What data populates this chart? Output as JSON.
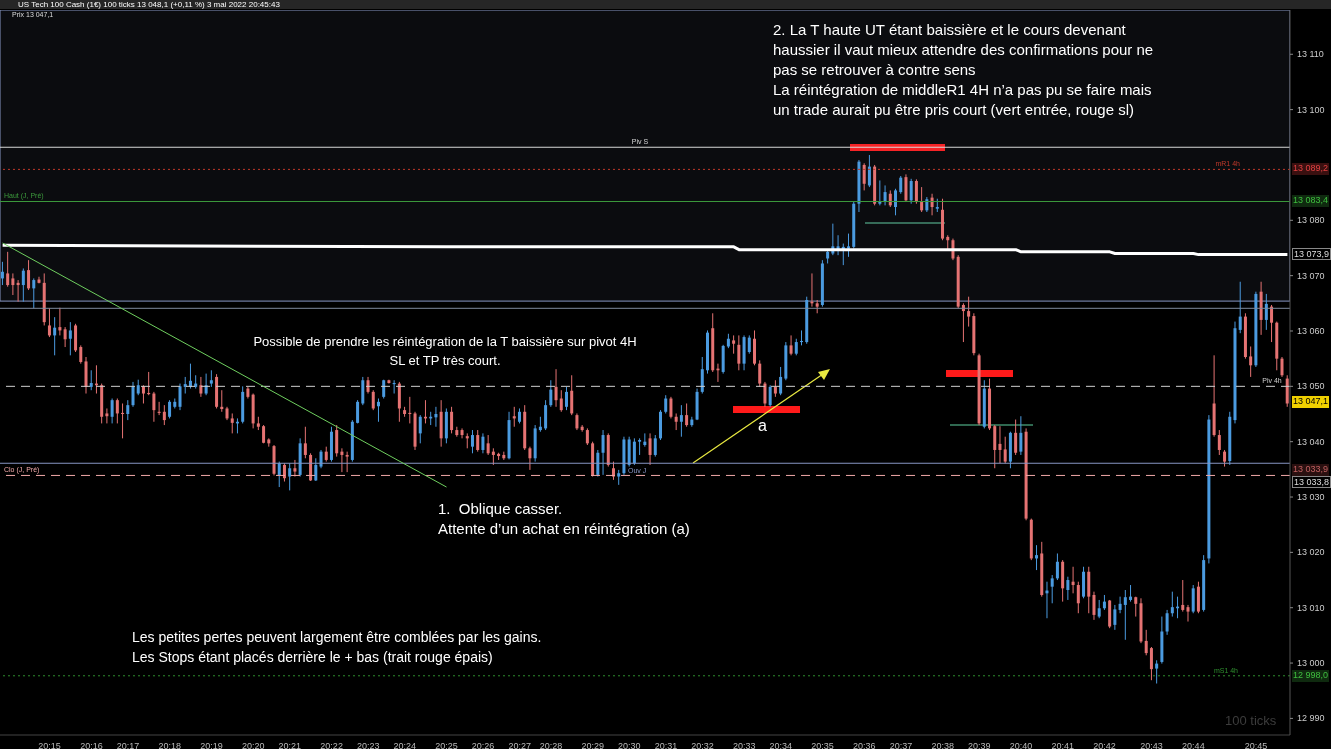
{
  "chart_data": {
    "type": "candlestick",
    "title": "US Tech 100 Cash (1€) 100 ticks 13 048,1 (+0,11 %) 3 mai 2022 20:45:43",
    "subtitle": "Prix 13 047,1",
    "categories": [
      null,
      null,
      null,
      null,
      null,
      null,
      null,
      null,
      null,
      "20:15",
      null,
      null,
      null,
      null,
      null,
      null,
      null,
      "20:16",
      null,
      null,
      null,
      null,
      null,
      null,
      "20:17",
      null,
      null,
      null,
      null,
      null,
      null,
      null,
      "20:18",
      null,
      null,
      null,
      null,
      null,
      null,
      null,
      "20:19",
      null,
      null,
      null,
      null,
      null,
      null,
      null,
      "20:20",
      null,
      null,
      null,
      null,
      null,
      null,
      "20:21",
      null,
      null,
      null,
      null,
      null,
      null,
      null,
      "20:22",
      null,
      null,
      null,
      null,
      null,
      null,
      "20:23",
      null,
      null,
      null,
      null,
      null,
      null,
      "20:24",
      null,
      null,
      null,
      null,
      null,
      null,
      null,
      "20:25",
      null,
      null,
      null,
      null,
      null,
      null,
      "20:26",
      null,
      null,
      null,
      null,
      null,
      null,
      "20:27",
      null,
      null,
      null,
      null,
      null,
      "20:28",
      null,
      null,
      null,
      null,
      null,
      null,
      null,
      "20:29",
      null,
      null,
      null,
      null,
      null,
      null,
      "20:30",
      null,
      null,
      null,
      null,
      null,
      null,
      "20:31",
      null,
      null,
      null,
      null,
      null,
      null,
      "20:32",
      null,
      null,
      null,
      null,
      null,
      null,
      null,
      "20:33",
      null,
      null,
      null,
      null,
      null,
      null,
      "20:34",
      null,
      null,
      null,
      null,
      null,
      null,
      null,
      "20:35",
      null,
      null,
      null,
      null,
      null,
      null,
      null,
      "20:36",
      null,
      null,
      null,
      null,
      null,
      null,
      "20:37",
      null,
      null,
      null,
      null,
      null,
      null,
      null,
      "20:38",
      null,
      null,
      null,
      null,
      null,
      null,
      "20:39",
      null,
      null,
      null,
      null,
      null,
      null,
      null,
      "20:40",
      null,
      null,
      null,
      null,
      null,
      null,
      null,
      "20:41",
      null,
      null,
      null,
      null,
      null,
      null,
      null,
      "20:42",
      null,
      null,
      null,
      null,
      null,
      null,
      null,
      null,
      "20:43",
      null,
      null,
      null,
      null,
      null,
      null,
      null,
      "20:44",
      null,
      null,
      null,
      null,
      null,
      null,
      null,
      null,
      null,
      null,
      null,
      "20:45",
      null,
      null,
      null,
      null,
      null,
      null
    ],
    "ohlc": [
      [
        13069.5,
        13072.5,
        13068.3,
        13070.7
      ],
      [
        13070.4,
        13074.3,
        13068.0,
        13068.3
      ],
      [
        13069.5,
        13070.4,
        13066.5,
        13068.3
      ],
      [
        13068.7,
        13069.2,
        13065.3,
        13068.3
      ],
      [
        13068.3,
        13071.3,
        13065.3,
        13070.9
      ],
      [
        13071.0,
        13072.8,
        13067.4,
        13067.7
      ],
      [
        13067.7,
        13069.5,
        13064.1,
        13069.2
      ],
      [
        13069.3,
        13069.8,
        13068.6,
        13068.7
      ],
      [
        13068.7,
        13070.4,
        13061.0,
        13061.6
      ],
      [
        13061.0,
        13064.1,
        13058.9,
        13059.2
      ],
      [
        13059.2,
        13062.5,
        13055.6,
        13060.6
      ],
      [
        13060.7,
        13064.2,
        13059.2,
        13060.1
      ],
      [
        13060.3,
        13060.7,
        13057.1,
        13058.5
      ],
      [
        13058.6,
        13061.6,
        13055.6,
        13060.1
      ],
      [
        13061.0,
        13061.3,
        13056.2,
        13056.5
      ],
      [
        13057.1,
        13057.4,
        13054.1,
        13054.4
      ],
      [
        13054.5,
        13055.3,
        13048.7,
        13049.9
      ],
      [
        13049.9,
        13052.9,
        13049.3,
        13050.6
      ],
      [
        13050.5,
        13053.8,
        13048.7,
        13050.2
      ],
      [
        13050.2,
        13050.5,
        13043.3,
        13044.5
      ],
      [
        13045.1,
        13046.0,
        13043.3,
        13044.6
      ],
      [
        13044.5,
        13047.8,
        13043.3,
        13047.5
      ],
      [
        13047.5,
        13047.8,
        13043.3,
        13045.1
      ],
      [
        13045.2,
        13046.9,
        13040.6,
        13045.0
      ],
      [
        13045.0,
        13047.5,
        13043.9,
        13046.6
      ],
      [
        13046.6,
        13050.8,
        13046.3,
        13050.0
      ],
      [
        13048.7,
        13051.2,
        13048.4,
        13050.2
      ],
      [
        13050.0,
        13050.2,
        13046.9,
        13048.7
      ],
      [
        13048.8,
        13052.6,
        13048.4,
        13048.6
      ],
      [
        13048.7,
        13049.0,
        13043.6,
        13045.7
      ],
      [
        13045.4,
        13047.2,
        13044.8,
        13045.2
      ],
      [
        13045.4,
        13046.6,
        13043.0,
        13043.9
      ],
      [
        13044.5,
        13047.5,
        13044.2,
        13047.2
      ],
      [
        13046.3,
        13047.8,
        13046.0,
        13047.2
      ],
      [
        13046.3,
        13050.5,
        13045.7,
        13050.0
      ],
      [
        13049.9,
        13051.7,
        13048.7,
        13050.4
      ],
      [
        13049.9,
        13054.1,
        13049.6,
        13051.0
      ],
      [
        13049.9,
        13052.0,
        13049.6,
        13050.5
      ],
      [
        13050.2,
        13051.7,
        13048.1,
        13048.7
      ],
      [
        13048.7,
        13052.3,
        13048.4,
        13050.2
      ],
      [
        13050.5,
        13052.9,
        13049.9,
        13051.1
      ],
      [
        13051.7,
        13052.2,
        13046.0,
        13046.3
      ],
      [
        13046.3,
        13049.3,
        13045.4,
        13045.9
      ],
      [
        13046.0,
        13046.3,
        13043.9,
        13044.2
      ],
      [
        13044.2,
        13045.1,
        13041.5,
        13043.4
      ],
      [
        13043.3,
        13044.2,
        13041.5,
        13043.6
      ],
      [
        13043.6,
        13050.0,
        13043.3,
        13049.0
      ],
      [
        13049.6,
        13049.9,
        13047.8,
        13048.1
      ],
      [
        13048.5,
        13048.7,
        13042.4,
        13043.3
      ],
      [
        13043.3,
        13044.5,
        13042.1,
        13042.7
      ],
      [
        13042.8,
        13043.0,
        13039.7,
        13039.8
      ],
      [
        13040.4,
        13040.6,
        13039.1,
        13039.7
      ],
      [
        13039.2,
        13039.4,
        13033.9,
        13034.2
      ],
      [
        13033.9,
        13036.4,
        13031.8,
        13036.1
      ],
      [
        13035.8,
        13036.1,
        13032.8,
        13033.4
      ],
      [
        13033.7,
        13036.1,
        13031.2,
        13035.2
      ],
      [
        13035.2,
        13036.7,
        13033.7,
        13034.6
      ],
      [
        13034.0,
        13040.6,
        13033.7,
        13039.7
      ],
      [
        13039.7,
        13042.7,
        13037.0,
        13037.6
      ],
      [
        13037.6,
        13037.9,
        13032.9,
        13033.0
      ],
      [
        13033.0,
        13037.0,
        13032.9,
        13035.8
      ],
      [
        13035.5,
        13038.5,
        13035.2,
        13038.2
      ],
      [
        13038.2,
        13039.1,
        13036.4,
        13036.7
      ],
      [
        13036.7,
        13042.7,
        13036.4,
        13041.8
      ],
      [
        13042.1,
        13043.0,
        13037.3,
        13037.9
      ],
      [
        13038.2,
        13038.8,
        13034.5,
        13037.6
      ],
      [
        13037.6,
        13038.2,
        13034.5,
        13037.3
      ],
      [
        13036.7,
        13043.9,
        13036.4,
        13043.6
      ],
      [
        13043.4,
        13047.5,
        13043.3,
        13047.2
      ],
      [
        13046.9,
        13051.7,
        13046.6,
        13051.1
      ],
      [
        13051.1,
        13051.7,
        13048.7,
        13049.0
      ],
      [
        13049.0,
        13049.3,
        13045.7,
        13046.0
      ],
      [
        13046.4,
        13047.8,
        13043.6,
        13047.2
      ],
      [
        13048.1,
        13051.2,
        13047.8,
        13051.1
      ],
      [
        13051.1,
        13051.2,
        13050.5,
        13050.6
      ],
      [
        13050.4,
        13051.1,
        13048.7,
        13050.6
      ],
      [
        13050.5,
        13050.8,
        13043.6,
        13046.0
      ],
      [
        13045.7,
        13046.3,
        13044.5,
        13045.0
      ],
      [
        13045.2,
        13048.1,
        13043.3,
        13045.0
      ],
      [
        13045.1,
        13045.4,
        13038.5,
        13039.1
      ],
      [
        13041.5,
        13044.8,
        13039.7,
        13044.5
      ],
      [
        13044.5,
        13047.5,
        13043.3,
        13044.2
      ],
      [
        13044.2,
        13045.4,
        13043.0,
        13044.5
      ],
      [
        13044.4,
        13046.3,
        13042.7,
        13045.0
      ],
      [
        13045.4,
        13047.5,
        13039.1,
        13040.6
      ],
      [
        13040.6,
        13046.0,
        13039.7,
        13045.4
      ],
      [
        13045.4,
        13046.3,
        13041.5,
        13042.1
      ],
      [
        13042.1,
        13042.7,
        13040.9,
        13041.2
      ],
      [
        13042.1,
        13042.4,
        13040.6,
        13041.2
      ],
      [
        13041.0,
        13041.5,
        13038.8,
        13040.6
      ],
      [
        13039.1,
        13042.1,
        13037.9,
        13041.2
      ],
      [
        13041.2,
        13042.1,
        13038.2,
        13038.5
      ],
      [
        13038.5,
        13041.5,
        13037.9,
        13040.9
      ],
      [
        13039.7,
        13041.2,
        13037.6,
        13037.9
      ],
      [
        13038.2,
        13038.8,
        13035.8,
        13037.6
      ],
      [
        13037.8,
        13038.0,
        13036.7,
        13037.4
      ],
      [
        13037.6,
        13038.2,
        13036.7,
        13037.0
      ],
      [
        13037.0,
        13045.4,
        13036.8,
        13043.9
      ],
      [
        13044.6,
        13046.3,
        13042.7,
        13044.2
      ],
      [
        13043.6,
        13046.0,
        13043.3,
        13045.4
      ],
      [
        13045.4,
        13046.6,
        13038.5,
        13038.8
      ],
      [
        13038.8,
        13039.1,
        13034.9,
        13037.0
      ],
      [
        13037.0,
        13043.0,
        13036.4,
        13042.4
      ],
      [
        13042.1,
        13044.5,
        13041.8,
        13042.7
      ],
      [
        13042.4,
        13047.5,
        13042.1,
        13046.6
      ],
      [
        13046.6,
        13051.1,
        13046.3,
        13049.4
      ],
      [
        13049.9,
        13053.1,
        13046.3,
        13047.5
      ],
      [
        13047.8,
        13049.3,
        13045.4,
        13045.7
      ],
      [
        13046.3,
        13049.9,
        13045.7,
        13049.0
      ],
      [
        13049.2,
        13052.0,
        13044.8,
        13045.1
      ],
      [
        13044.8,
        13045.1,
        13042.1,
        13042.4
      ],
      [
        13042.7,
        13043.0,
        13041.8,
        13042.1
      ],
      [
        13042.1,
        13042.4,
        13039.4,
        13039.7
      ],
      [
        13039.7,
        13040.0,
        13033.7,
        13033.8
      ],
      [
        13034.0,
        13038.5,
        13033.7,
        13038.0
      ],
      [
        13038.0,
        13042.1,
        13034.0,
        13041.2
      ],
      [
        13041.2,
        13041.5,
        13035.5,
        13035.8
      ],
      [
        13035.2,
        13036.4,
        13033.1,
        13033.7
      ],
      [
        13033.7,
        13034.9,
        13032.2,
        13034.3
      ],
      [
        13034.3,
        13040.9,
        13034.0,
        13040.4
      ],
      [
        13035.8,
        13040.9,
        13035.5,
        13040.4
      ],
      [
        13036.1,
        13040.6,
        13035.8,
        13040.0
      ],
      [
        13040.0,
        13040.6,
        13037.6,
        13040.3
      ],
      [
        13039.4,
        13041.5,
        13039.1,
        13040.0
      ],
      [
        13040.6,
        13041.5,
        13035.8,
        13037.6
      ],
      [
        13037.6,
        13041.2,
        13037.3,
        13040.6
      ],
      [
        13040.6,
        13045.7,
        13040.3,
        13045.4
      ],
      [
        13045.4,
        13048.4,
        13045.1,
        13047.8
      ],
      [
        13047.8,
        13048.1,
        13044.2,
        13044.5
      ],
      [
        13044.5,
        13045.1,
        13042.1,
        13043.6
      ],
      [
        13043.6,
        13046.6,
        13040.9,
        13044.8
      ],
      [
        13044.8,
        13046.9,
        13042.7,
        13043.0
      ],
      [
        13043.0,
        13044.5,
        13042.7,
        13044.0
      ],
      [
        13044.0,
        13049.6,
        13043.9,
        13049.0
      ],
      [
        13049.0,
        13055.3,
        13048.7,
        13053.1
      ],
      [
        13052.9,
        13060.1,
        13052.3,
        13059.7
      ],
      [
        13060.5,
        13063.2,
        13052.6,
        13052.9
      ],
      [
        13053.2,
        13054.1,
        13050.8,
        13052.9
      ],
      [
        13052.6,
        13057.5,
        13052.3,
        13057.3
      ],
      [
        13057.2,
        13059.5,
        13056.9,
        13058.6
      ],
      [
        13058.3,
        13059.2,
        13055.9,
        13057.7
      ],
      [
        13057.5,
        13059.2,
        13052.9,
        13054.1
      ],
      [
        13054.1,
        13059.2,
        13052.9,
        13058.9
      ],
      [
        13056.2,
        13059.2,
        13055.9,
        13058.8
      ],
      [
        13058.6,
        13060.1,
        13053.8,
        13054.1
      ],
      [
        13054.1,
        13054.7,
        13049.9,
        13050.5
      ],
      [
        13050.5,
        13050.8,
        13046.3,
        13046.9
      ],
      [
        13046.6,
        13050.2,
        13046.3,
        13049.9
      ],
      [
        13049.9,
        13051.1,
        13048.1,
        13048.7
      ],
      [
        13048.7,
        13053.5,
        13048.4,
        13051.7
      ],
      [
        13051.4,
        13058.0,
        13051.1,
        13057.4
      ],
      [
        13057.4,
        13059.2,
        13055.6,
        13055.9
      ],
      [
        13055.9,
        13058.6,
        13055.6,
        13058.0
      ],
      [
        13058.0,
        13060.1,
        13057.4,
        13058.2
      ],
      [
        13058.0,
        13066.2,
        13057.7,
        13065.6
      ],
      [
        13065.3,
        13070.4,
        13064.4,
        13065.0
      ],
      [
        13065.0,
        13065.6,
        13063.2,
        13064.4
      ],
      [
        13064.7,
        13072.8,
        13064.4,
        13072.2
      ],
      [
        13073.1,
        13074.6,
        13072.2,
        13074.3
      ],
      [
        13074.0,
        13079.4,
        13073.7,
        13075.3
      ],
      [
        13074.6,
        13077.3,
        13073.7,
        13075.3
      ],
      [
        13074.6,
        13075.8,
        13071.9,
        13075.2
      ],
      [
        13074.9,
        13077.6,
        13073.4,
        13075.3
      ],
      [
        13075.2,
        13083.3,
        13074.9,
        13083.0
      ],
      [
        13083.0,
        13090.9,
        13081.5,
        13090.6
      ],
      [
        13090.0,
        13090.3,
        13085.4,
        13086.6
      ],
      [
        13086.3,
        13091.8,
        13086.0,
        13089.7
      ],
      [
        13089.7,
        13090.0,
        13082.7,
        13083.0
      ],
      [
        13083.0,
        13087.2,
        13082.7,
        13083.4
      ],
      [
        13083.3,
        13086.3,
        13082.7,
        13085.1
      ],
      [
        13084.8,
        13085.4,
        13082.4,
        13082.7
      ],
      [
        13082.4,
        13085.7,
        13080.9,
        13085.4
      ],
      [
        13085.1,
        13088.0,
        13084.8,
        13087.7
      ],
      [
        13087.8,
        13088.3,
        13083.3,
        13083.6
      ],
      [
        13083.6,
        13087.5,
        13083.0,
        13087.1
      ],
      [
        13087.1,
        13087.4,
        13083.0,
        13083.3
      ],
      [
        13083.3,
        13086.0,
        13081.5,
        13081.8
      ],
      [
        13081.8,
        13084.2,
        13081.5,
        13083.8
      ],
      [
        13084.1,
        13084.8,
        13080.9,
        13082.4
      ],
      [
        13082.1,
        13083.9,
        13081.5,
        13082.4
      ],
      [
        13081.9,
        13083.9,
        13076.4,
        13076.7
      ],
      [
        13077.0,
        13077.3,
        13074.6,
        13076.4
      ],
      [
        13076.4,
        13076.7,
        13072.8,
        13073.1
      ],
      [
        13073.4,
        13073.7,
        13064.1,
        13064.4
      ],
      [
        13064.7,
        13065.0,
        13058.0,
        13063.6
      ],
      [
        13063.6,
        13066.2,
        13060.8,
        13062.6
      ],
      [
        13062.7,
        13063.2,
        13055.6,
        13056.0
      ],
      [
        13055.6,
        13055.9,
        13043.0,
        13043.3
      ],
      [
        13042.7,
        13051.1,
        13042.4,
        13049.6
      ],
      [
        13049.6,
        13051.4,
        13042.1,
        13042.4
      ],
      [
        13042.8,
        13043.0,
        13035.2,
        13038.5
      ],
      [
        13039.6,
        13042.8,
        13036.1,
        13038.5
      ],
      [
        13038.6,
        13040.9,
        13036.1,
        13036.4
      ],
      [
        13036.4,
        13041.8,
        13035.2,
        13041.6
      ],
      [
        13041.6,
        13044.0,
        13037.6,
        13038.0
      ],
      [
        13038.2,
        13044.6,
        13037.6,
        13041.6
      ],
      [
        13041.8,
        13042.4,
        13025.8,
        13026.1
      ],
      [
        13025.9,
        13026.1,
        13018.6,
        13018.9
      ],
      [
        13018.9,
        13021.3,
        13016.8,
        13019.5
      ],
      [
        13019.8,
        13021.9,
        13012.0,
        13012.3
      ],
      [
        13012.6,
        13014.7,
        13008.1,
        13013.1
      ],
      [
        13013.8,
        13015.9,
        13010.8,
        13015.3
      ],
      [
        13015.3,
        13019.8,
        13015.0,
        13018.3
      ],
      [
        13018.3,
        13018.6,
        13011.1,
        13013.5
      ],
      [
        13013.2,
        13015.6,
        13011.4,
        13015.0
      ],
      [
        13014.7,
        13017.4,
        13012.6,
        13014.1
      ],
      [
        13014.1,
        13014.7,
        13009.0,
        13010.8
      ],
      [
        13012.0,
        13017.4,
        13011.7,
        13016.5
      ],
      [
        13016.5,
        13017.4,
        13009.0,
        13012.0
      ],
      [
        13012.3,
        13012.9,
        13007.8,
        13008.7
      ],
      [
        13008.4,
        13011.4,
        13008.1,
        13009.9
      ],
      [
        13009.9,
        13012.3,
        13009.6,
        13011.1
      ],
      [
        13011.3,
        13011.4,
        13006.3,
        13006.6
      ],
      [
        13006.9,
        13010.5,
        13006.0,
        13009.7
      ],
      [
        13009.6,
        13012.0,
        13009.0,
        13010.7
      ],
      [
        13010.5,
        13013.2,
        13004.2,
        13011.9
      ],
      [
        13011.4,
        13014.1,
        13011.1,
        13012.0
      ],
      [
        13011.9,
        13012.0,
        13008.4,
        13010.7
      ],
      [
        13010.8,
        13011.7,
        13003.6,
        13003.9
      ],
      [
        13004.0,
        13006.0,
        13001.4,
        13001.8
      ],
      [
        13002.7,
        13002.9,
        12996.9,
        12998.9
      ],
      [
        12999.0,
        13000.5,
        12996.3,
        12999.9
      ],
      [
        13000.2,
        13008.4,
        12999.9,
        13005.7
      ],
      [
        13005.7,
        13009.6,
        13005.1,
        13009.0
      ],
      [
        13009.0,
        13012.9,
        13008.4,
        13010.1
      ],
      [
        13009.9,
        13012.0,
        13008.1,
        13010.2
      ],
      [
        13010.5,
        13015.0,
        13009.3,
        13009.6
      ],
      [
        13010.1,
        13010.5,
        13007.5,
        13009.3
      ],
      [
        13009.3,
        13014.1,
        13009.0,
        13013.5
      ],
      [
        13013.8,
        13014.7,
        13009.0,
        13009.3
      ],
      [
        13009.6,
        13019.5,
        13009.3,
        13018.6
      ],
      [
        13018.9,
        13044.8,
        13018.0,
        13044.0
      ],
      [
        13046.9,
        13055.6,
        13040.9,
        13041.2
      ],
      [
        13041.2,
        13042.1,
        13037.6,
        13038.5
      ],
      [
        13038.2,
        13038.5,
        13035.5,
        13036.4
      ],
      [
        13036.5,
        13045.4,
        13035.8,
        13044.5
      ],
      [
        13043.9,
        13061.7,
        13043.3,
        13060.5
      ],
      [
        13060.2,
        13068.9,
        13059.6,
        13062.6
      ],
      [
        13062.6,
        13063.2,
        13055.0,
        13055.3
      ],
      [
        13055.4,
        13057.2,
        13051.7,
        13053.8
      ],
      [
        13053.8,
        13067.1,
        13053.5,
        13066.7
      ],
      [
        13067.1,
        13068.9,
        13059.3,
        13062.0
      ],
      [
        13062.0,
        13066.7,
        13060.2,
        13064.9
      ],
      [
        13064.4,
        13064.7,
        13058.0,
        13061.5
      ],
      [
        13061.5,
        13061.7,
        13052.9,
        13055.0
      ],
      [
        13055.0,
        13055.3,
        13051.7,
        13052.0
      ],
      [
        13051.4,
        13052.0,
        13046.3,
        13046.9
      ]
    ],
    "colors": [
      "#4b9be0",
      "#e57373",
      "#e57373",
      "#e57373",
      "#4b9be0",
      "#e57373",
      "#4b9be0",
      "#e57373",
      "#e57373",
      "#e57373",
      "#4b9be0",
      "#e57373",
      "#e57373",
      "#4b9be0",
      "#e57373",
      "#e57373",
      "#e57373",
      "#4b9be0",
      "#e57373",
      "#e57373",
      "#e57373",
      "#4b9be0",
      "#e57373",
      "#e57373",
      "#4b9be0",
      "#4b9be0",
      "#4b9be0",
      "#e57373",
      "#e57373",
      "#e57373",
      "#e57373",
      "#e57373",
      "#4b9be0",
      "#4b9be0",
      "#4b9be0",
      "#4b9be0",
      "#4b9be0",
      "#4b9be0",
      "#e57373",
      "#4b9be0",
      "#4b9be0",
      "#e57373",
      "#e57373",
      "#e57373",
      "#e57373",
      "#4b9be0",
      "#4b9be0",
      "#e57373",
      "#e57373",
      "#e57373",
      "#e57373",
      "#e57373",
      "#e57373",
      "#4b9be0",
      "#e57373",
      "#4b9be0",
      "#e57373",
      "#4b9be0",
      "#e57373",
      "#e57373",
      "#4b9be0",
      "#4b9be0",
      "#e57373",
      "#4b9be0",
      "#e57373",
      "#e57373",
      "#e57373",
      "#4b9be0",
      "#4b9be0",
      "#4b9be0",
      "#e57373",
      "#e57373",
      "#4b9be0",
      "#4b9be0",
      "#e57373",
      "#4b9be0",
      "#e57373",
      "#e57373",
      "#e57373",
      "#e57373",
      "#4b9be0",
      "#e57373",
      "#4b9be0",
      "#4b9be0",
      "#e57373",
      "#4b9be0",
      "#e57373",
      "#e57373",
      "#e57373",
      "#e57373",
      "#4b9be0",
      "#e57373",
      "#4b9be0",
      "#e57373",
      "#e57373",
      "#e57373",
      "#e57373",
      "#4b9be0",
      "#e57373",
      "#4b9be0",
      "#e57373",
      "#e57373",
      "#4b9be0",
      "#4b9be0",
      "#4b9be0",
      "#4b9be0",
      "#e57373",
      "#e57373",
      "#4b9be0",
      "#e57373",
      "#e57373",
      "#e57373",
      "#e57373",
      "#e57373",
      "#4b9be0",
      "#4b9be0",
      "#e57373",
      "#e57373",
      "#4b9be0",
      "#4b9be0",
      "#4b9be0",
      "#4b9be0",
      "#4b9be0",
      "#4b9be0",
      "#e57373",
      "#4b9be0",
      "#4b9be0",
      "#4b9be0",
      "#e57373",
      "#e57373",
      "#4b9be0",
      "#e57373",
      "#4b9be0",
      "#4b9be0",
      "#4b9be0",
      "#4b9be0",
      "#e57373",
      "#e57373",
      "#4b9be0",
      "#4b9be0",
      "#e57373",
      "#e57373",
      "#4b9be0",
      "#4b9be0",
      "#e57373",
      "#e57373",
      "#e57373",
      "#4b9be0",
      "#e57373",
      "#4b9be0",
      "#4b9be0",
      "#e57373",
      "#4b9be0",
      "#4b9be0",
      "#4b9be0",
      "#e57373",
      "#e57373",
      "#4b9be0",
      "#4b9be0",
      "#4b9be0",
      "#4b9be0",
      "#4b9be0",
      "#4b9be0",
      "#4b9be0",
      "#4b9be0",
      "#e57373",
      "#4b9be0",
      "#e57373",
      "#4b9be0",
      "#4b9be0",
      "#e57373",
      "#4b9be0",
      "#4b9be0",
      "#e57373",
      "#4b9be0",
      "#e57373",
      "#e57373",
      "#4b9be0",
      "#e57373",
      "#4b9be0",
      "#e57373",
      "#e57373",
      "#e57373",
      "#e57373",
      "#e57373",
      "#e57373",
      "#e57373",
      "#e57373",
      "#4b9be0",
      "#e57373",
      "#e57373",
      "#e57373",
      "#e57373",
      "#4b9be0",
      "#e57373",
      "#4b9be0",
      "#e57373",
      "#e57373",
      "#4b9be0",
      "#e57373",
      "#4b9be0",
      "#4b9be0",
      "#4b9be0",
      "#e57373",
      "#4b9be0",
      "#e57373",
      "#e57373",
      "#4b9be0",
      "#e57373",
      "#e57373",
      "#4b9be0",
      "#4b9be0",
      "#e57373",
      "#4b9be0",
      "#4b9be0",
      "#4b9be0",
      "#4b9be0",
      "#e57373",
      "#e57373",
      "#e57373",
      "#e57373",
      "#4b9be0",
      "#4b9be0",
      "#4b9be0",
      "#4b9be0",
      "#4b9be0",
      "#e57373",
      "#e57373",
      "#4b9be0",
      "#e57373",
      "#4b9be0",
      "#4b9be0",
      "#e57373",
      "#e57373",
      "#e57373",
      "#4b9be0",
      "#4b9be0",
      "#4b9be0",
      "#e57373",
      "#e57373",
      "#4b9be0",
      "#e57373",
      "#4b9be0",
      "#e57373",
      "#e57373",
      "#e57373",
      "#e57373"
    ],
    "ylim": [
      12987,
      13118
    ],
    "yticks": [
      {
        "value": 12990,
        "label": "12 990"
      },
      {
        "value": 13000,
        "label": "13 000"
      },
      {
        "value": 13010,
        "label": "13 010"
      },
      {
        "value": 13020,
        "label": "13 020"
      },
      {
        "value": 13030,
        "label": "13 030"
      },
      {
        "value": 13040,
        "label": "13 040"
      },
      {
        "value": 13050,
        "label": "13 050"
      },
      {
        "value": 13060,
        "label": "13 060"
      },
      {
        "value": 13070,
        "label": "13 070"
      },
      {
        "value": 13080,
        "label": "13 080"
      },
      {
        "value": 13100,
        "label": "13 100"
      },
      {
        "value": 13110,
        "label": "13 110"
      }
    ],
    "ref_lines": [
      {
        "axis": "y",
        "value": 13093.2,
        "label": "Piv S",
        "color": "#d8d8d8",
        "line_style": "solid"
      },
      {
        "axis": "y",
        "value": 13089.2,
        "label": "mR1 4h",
        "color": "#c0392b",
        "line_style": "dotted"
      },
      {
        "axis": "y",
        "value": 13083.4,
        "label": "Haut (J, Pré)",
        "color": "#3c9a3c",
        "line_style": "solid"
      },
      {
        "axis": "y",
        "value": 13064.1,
        "label": null,
        "color": "#7f8a9e",
        "line_style": "solid"
      },
      {
        "axis": "y",
        "value": 13050,
        "label": "Piv 4h",
        "color": "#cfcfcf",
        "line_style": "dashed"
      },
      {
        "axis": "y",
        "value": 13036.1,
        "label": "Ouv J",
        "color": "#8795c4",
        "line_style": "solid"
      },
      {
        "axis": "y",
        "value": 13033.9,
        "label": "Clo (J, Pré)",
        "color": "#f0a8a8",
        "line_style": "dashed"
      },
      {
        "axis": "y",
        "value": 12997.7,
        "label": "mS1 4h",
        "color": "#2f8f2f",
        "line_style": "dotted"
      }
    ],
    "series": [
      {
        "type": "line",
        "color": "#ffffff",
        "values": [
          13075.5,
          null,
          null,
          null,
          null,
          null,
          null,
          null,
          null,
          null,
          null,
          null,
          null,
          null,
          null,
          null,
          null,
          null,
          null,
          null,
          null,
          null,
          null,
          null,
          null,
          null,
          null,
          null,
          null,
          null,
          null,
          null,
          null,
          null,
          null,
          null,
          null,
          null,
          null,
          null,
          null,
          null,
          null,
          null,
          null,
          null,
          null,
          null,
          null,
          null,
          null,
          null,
          null,
          null,
          null,
          null,
          null,
          null,
          null,
          null,
          null,
          null,
          null,
          null,
          null,
          null,
          null,
          null,
          null,
          null,
          null,
          null,
          null,
          null,
          null,
          null,
          null,
          null,
          null,
          null,
          null,
          null,
          null,
          null,
          null,
          13075.2,
          null,
          null,
          null,
          null,
          null,
          null,
          null,
          null,
          null,
          null,
          null,
          null,
          null,
          null,
          null,
          null,
          null,
          null,
          null,
          null,
          null,
          null,
          null,
          null,
          null,
          null,
          null,
          null,
          null,
          null,
          null,
          null,
          null,
          null,
          null,
          null,
          null,
          null,
          null,
          null,
          null,
          null,
          null,
          null,
          null,
          null,
          null,
          null,
          null,
          null,
          null,
          null,
          null,
          null,
          13075.2,
          13074.7,
          null,
          null,
          null,
          null,
          null,
          null,
          null,
          null,
          null,
          null,
          null,
          null,
          null,
          null,
          null,
          null,
          null,
          null,
          null,
          null,
          null,
          null,
          null,
          null,
          null,
          null,
          null,
          null,
          null,
          null,
          null,
          null,
          null,
          null,
          null,
          null,
          null,
          null,
          null,
          null,
          null,
          null,
          null,
          null,
          null,
          null,
          null,
          null,
          null,
          null,
          null,
          null,
          13074.7,
          13074.3,
          null,
          null,
          null,
          null,
          null,
          null,
          null,
          null,
          null,
          null,
          null,
          null,
          null,
          null,
          null,
          null,
          13074.3,
          13074.0,
          null,
          null,
          null,
          null,
          null,
          null,
          null,
          null,
          null,
          null,
          null,
          null,
          null,
          null,
          13074.0,
          13073.8,
          null,
          null,
          null,
          null,
          null,
          null,
          null,
          null,
          null,
          null,
          null,
          null,
          null,
          null,
          null,
          null,
          13073.8
        ]
      },
      {
        "type": "line",
        "color": "#6fcf5f",
        "values": [
          13075.9,
          null,
          null,
          null,
          null,
          null,
          null,
          null,
          null,
          null,
          null,
          null,
          null,
          null,
          null,
          null,
          null,
          null,
          null,
          null,
          null,
          null,
          null,
          null,
          null,
          null,
          null,
          null,
          null,
          null,
          null,
          null,
          null,
          null,
          null,
          null,
          null,
          null,
          null,
          null,
          null,
          null,
          null,
          null,
          null,
          null,
          null,
          null,
          null,
          null,
          null,
          null,
          null,
          null,
          null,
          null,
          null,
          null,
          null,
          null,
          null,
          null,
          null,
          null,
          null,
          null,
          null,
          null,
          null,
          null,
          null,
          null,
          null,
          null,
          null,
          null,
          null,
          null,
          null,
          null,
          null,
          null,
          null,
          null,
          null,
          13031.8,
          null,
          null,
          null,
          null,
          null,
          null,
          null,
          null,
          null,
          null,
          null,
          null,
          null,
          null,
          null,
          null,
          null,
          null,
          null,
          null,
          null,
          null,
          null,
          null,
          null,
          null,
          null,
          null,
          null,
          null,
          null,
          null,
          null,
          null,
          null,
          null,
          null,
          null,
          null,
          null,
          null,
          null,
          null,
          null,
          null,
          null,
          null,
          null,
          null,
          null,
          null,
          null,
          null,
          null,
          null,
          null,
          null,
          null,
          null,
          null,
          null,
          null,
          null,
          null,
          null,
          null,
          null,
          null,
          null,
          null,
          null,
          null,
          null,
          null,
          null,
          null,
          null,
          null,
          null,
          null,
          null,
          null,
          null,
          null,
          null,
          null,
          null,
          null,
          null,
          null,
          null,
          null,
          null,
          null,
          null,
          null,
          null,
          null,
          null,
          null,
          null,
          null,
          null,
          null,
          null,
          null,
          null,
          null,
          null,
          null,
          null,
          null,
          null,
          null,
          null,
          null,
          null,
          null,
          null,
          null,
          null,
          null,
          null,
          null,
          null,
          null,
          null,
          null,
          null,
          null,
          null,
          null,
          null,
          null,
          null,
          null,
          null,
          null,
          null,
          null,
          null,
          null,
          null,
          null,
          null,
          null,
          null,
          null,
          null,
          null,
          null,
          null,
          null,
          null,
          null,
          null,
          null,
          null,
          null,
          null,
          null
        ]
      }
    ],
    "bands": [
      {
        "axis": "y",
        "from": 13065.4,
        "to": 13118,
        "color": "#8795c4"
      }
    ],
    "annotations": [
      "2. La T haute UT étant baissière et le cours devenant\nhaussier il vaut mieux attendre des confirmations pour ne\npas se retrouver à contre sens\nLa réintégration de middleR1 4H n’a pas pu se faire mais\nun trade aurait pu être pris court (vert entrée, rouge sl)",
      "Possible de prendre les réintégration de la T baissière sur pivot 4H\nSL et TP très court.",
      "1.  Oblique casser.\nAttente d’un achat en réintégration (a)",
      "a",
      "Les petites pertes peuvent largement être comblées par les gains.\nLes Stops étant placés derrière le + bas (trait rouge épais)",
      "100 ticks",
      "13 089,2",
      "13 083,4",
      "13 073,9",
      "13 047,1",
      "13 033,9",
      "13 033,8",
      "12 998,0"
    ]
  }
}
